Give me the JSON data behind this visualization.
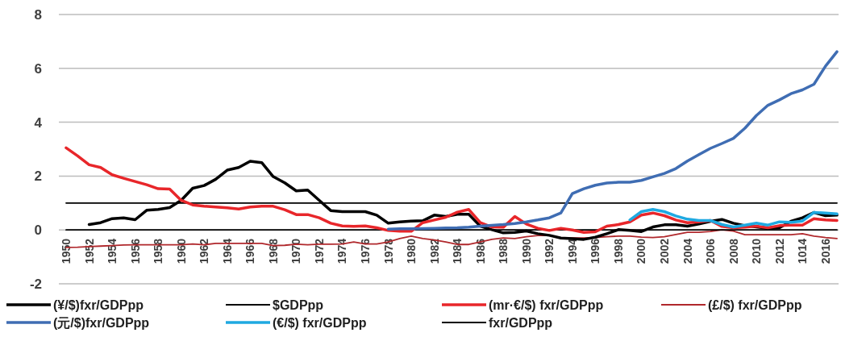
{
  "chart_data": {
    "type": "line",
    "categories": [
      "1950",
      null,
      "1952",
      null,
      "1954",
      null,
      "1956",
      null,
      "1958",
      null,
      "1960",
      null,
      "1962",
      null,
      "1964",
      null,
      "1966",
      null,
      "1968",
      null,
      "1970",
      null,
      "1972",
      null,
      "1974",
      null,
      "1976",
      null,
      "1978",
      null,
      "1980",
      null,
      "1982",
      null,
      "1984",
      null,
      "1986",
      null,
      "1988",
      null,
      "1990",
      null,
      "1992",
      null,
      "1994",
      null,
      "1996",
      null,
      "1998",
      null,
      "2000",
      null,
      "2002",
      null,
      "2004",
      null,
      "2006",
      null,
      "2008",
      null,
      "2010",
      null,
      "2012",
      null,
      "1014",
      null,
      "2016",
      null
    ],
    "series": [
      {
        "name": "(¥/$)fxr/GDPpp",
        "color": "#000000",
        "values": [
          null,
          null,
          0.2,
          0.27,
          0.42,
          0.45,
          0.38,
          0.73,
          0.76,
          0.83,
          1.1,
          1.55,
          1.65,
          1.88,
          2.22,
          2.32,
          2.55,
          2.5,
          1.98,
          1.75,
          1.45,
          1.48,
          1.1,
          0.72,
          0.68,
          0.68,
          0.68,
          0.55,
          0.25,
          0.3,
          0.33,
          0.34,
          0.55,
          0.5,
          0.58,
          0.58,
          0.14,
          0.01,
          -0.11,
          -0.09,
          -0.04,
          -0.14,
          -0.2,
          -0.3,
          -0.32,
          -0.35,
          -0.27,
          -0.14,
          0.01,
          -0.02,
          -0.06,
          0.11,
          0.19,
          0.19,
          0.14,
          0.22,
          0.32,
          0.39,
          0.25,
          0.16,
          0.11,
          0.06,
          0.08,
          0.32,
          0.45,
          0.65,
          0.53,
          0.55
        ]
      },
      {
        "name": "$GDPpp",
        "color": "#000000",
        "values": [
          1,
          1,
          1,
          1,
          1,
          1,
          1,
          1,
          1,
          1,
          1,
          1,
          1,
          1,
          1,
          1,
          1,
          1,
          1,
          1,
          1,
          1,
          1,
          1,
          1,
          1,
          1,
          1,
          1,
          1,
          1,
          1,
          1,
          1,
          1,
          1,
          1,
          1,
          1,
          1,
          1,
          1,
          1,
          1,
          1,
          1,
          1,
          1,
          1,
          1,
          1,
          1,
          1,
          1,
          1,
          1,
          1,
          1,
          1,
          1,
          1,
          1,
          1,
          1,
          1,
          1,
          1,
          1
        ]
      },
      {
        "name": "(mr·€/$) fxr/GDPpp",
        "color": "#e8262a",
        "values": [
          3.05,
          2.75,
          2.42,
          2.32,
          2.05,
          1.92,
          1.8,
          1.68,
          1.53,
          1.52,
          1.1,
          0.93,
          0.88,
          0.85,
          0.82,
          0.78,
          0.85,
          0.88,
          0.88,
          0.75,
          0.57,
          0.57,
          0.45,
          0.25,
          0.15,
          0.13,
          0.15,
          0.08,
          -0.02,
          -0.05,
          -0.05,
          0.27,
          0.37,
          0.47,
          0.66,
          0.76,
          0.27,
          0.11,
          0.1,
          0.5,
          0.22,
          0.06,
          -0.02,
          0.06,
          0,
          -0.09,
          -0.07,
          0.14,
          0.2,
          0.3,
          0.55,
          0.63,
          0.53,
          0.37,
          0.27,
          0.3,
          0.35,
          0.13,
          0.08,
          0.1,
          0.14,
          0.08,
          0.16,
          0.18,
          0.18,
          0.42,
          0.37,
          0.35
        ]
      },
      {
        "name": "(£/$) fxr/GDPpp",
        "color": "#b0282c",
        "values": [
          -0.65,
          -0.64,
          -0.62,
          -0.6,
          -0.58,
          -0.56,
          -0.55,
          -0.55,
          -0.55,
          -0.55,
          -0.55,
          -0.52,
          -0.55,
          -0.5,
          -0.5,
          -0.5,
          -0.5,
          -0.5,
          -0.58,
          -0.57,
          -0.53,
          -0.55,
          -0.53,
          -0.53,
          -0.52,
          -0.45,
          -0.52,
          -0.52,
          -0.45,
          -0.32,
          -0.23,
          -0.32,
          -0.37,
          -0.45,
          -0.54,
          -0.54,
          -0.45,
          -0.35,
          -0.3,
          -0.32,
          -0.25,
          -0.21,
          -0.2,
          -0.3,
          -0.3,
          -0.3,
          -0.28,
          -0.25,
          -0.23,
          -0.23,
          -0.27,
          -0.28,
          -0.25,
          -0.17,
          -0.09,
          -0.09,
          -0.06,
          0,
          -0.04,
          -0.18,
          -0.18,
          -0.18,
          -0.18,
          -0.18,
          -0.14,
          -0.23,
          -0.28,
          -0.32
        ]
      },
      {
        "name": "(元/$)fxr/GDPpp",
        "color": "#3f6db3",
        "values": [
          null,
          null,
          null,
          null,
          null,
          null,
          null,
          null,
          null,
          null,
          null,
          null,
          null,
          null,
          null,
          null,
          null,
          null,
          null,
          null,
          null,
          null,
          null,
          null,
          null,
          null,
          null,
          null,
          0.03,
          0.04,
          0.04,
          0.05,
          0.06,
          0.07,
          0.08,
          0.1,
          0.14,
          0.17,
          0.2,
          0.24,
          0.3,
          0.37,
          0.45,
          0.63,
          1.35,
          1.53,
          1.66,
          1.74,
          1.77,
          1.77,
          1.84,
          1.97,
          2.1,
          2.28,
          2.56,
          2.8,
          3.03,
          3.21,
          3.4,
          3.78,
          4.25,
          4.63,
          4.83,
          5.06,
          5.2,
          5.41,
          6.08,
          6.62
        ]
      },
      {
        "name": "(€/$) fxr/GDPpp",
        "color": "#1fa9e1",
        "values": [
          null,
          null,
          null,
          null,
          null,
          null,
          null,
          null,
          null,
          null,
          null,
          null,
          null,
          null,
          null,
          null,
          null,
          null,
          null,
          null,
          null,
          null,
          null,
          null,
          null,
          null,
          null,
          null,
          null,
          null,
          null,
          null,
          null,
          null,
          null,
          null,
          null,
          null,
          null,
          null,
          null,
          null,
          null,
          null,
          null,
          null,
          null,
          null,
          null,
          0.37,
          0.68,
          0.76,
          0.68,
          0.52,
          0.4,
          0.35,
          0.35,
          0.2,
          0.11,
          0.18,
          0.25,
          0.18,
          0.3,
          0.28,
          0.33,
          0.65,
          0.63,
          0.6
        ]
      },
      {
        "name": "fxr/GDPpp",
        "color": "#000000",
        "values": [
          0,
          0,
          0,
          0,
          0,
          0,
          0,
          0,
          0,
          0,
          0,
          0,
          0,
          0,
          0,
          0,
          0,
          0,
          0,
          0,
          0,
          0,
          0,
          0,
          0,
          0,
          0,
          0,
          0,
          0,
          0,
          0,
          0,
          0,
          0,
          0,
          0,
          0,
          0,
          0,
          0,
          0,
          0,
          0,
          0,
          0,
          0,
          0,
          0,
          0,
          0,
          0,
          0,
          0,
          0,
          0,
          0,
          0,
          0,
          0,
          0,
          0,
          0,
          0,
          0,
          0,
          0,
          0
        ]
      }
    ],
    "ylim": [
      -2,
      8
    ],
    "yticks": [
      -2,
      0,
      2,
      4,
      6,
      8
    ],
    "grid": "y",
    "legend": "bottom"
  }
}
